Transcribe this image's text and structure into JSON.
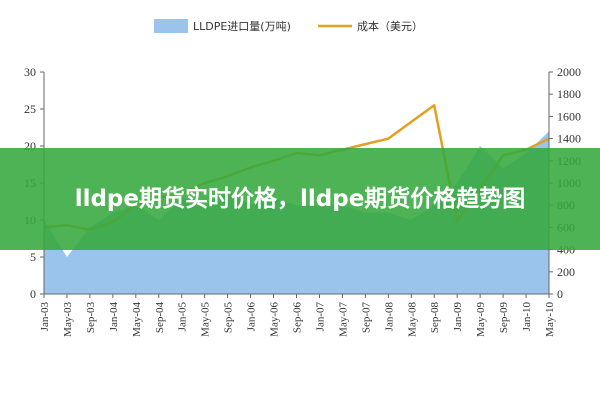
{
  "page_title": "lldpe期货实时价格，lldpe期货价格趋势图",
  "colors": {
    "area": "#9bc4ec",
    "line": "#e3a020",
    "banner": "#34a83c"
  },
  "chart_data": {
    "type": "area",
    "x": [
      "Jan-03",
      "May-03",
      "Sep-03",
      "Jan-04",
      "May-04",
      "Sep-04",
      "Jan-05",
      "May-05",
      "Sep-05",
      "Jan-06",
      "May-06",
      "Sep-06",
      "Jan-07",
      "May-07",
      "Sep-07",
      "Jan-08",
      "May-08",
      "Sep-08",
      "Jan-09",
      "May-09",
      "Sep-09",
      "Jan-10",
      "May-10"
    ],
    "series": [
      {
        "name": "LLDPE进口量(万吨)",
        "axis": "left",
        "chart_type": "area",
        "values": [
          10,
          5,
          9,
          11,
          12,
          10,
          13,
          12,
          14,
          12,
          13,
          12,
          12,
          12,
          11,
          11,
          10,
          12,
          15,
          20,
          17,
          19,
          22
        ]
      },
      {
        "name": "成本（美元）",
        "axis": "right",
        "chart_type": "line",
        "values": [
          600,
          620,
          580,
          650,
          800,
          870,
          900,
          1000,
          1060,
          1140,
          1200,
          1270,
          1250,
          1300,
          1350,
          1400,
          1550,
          1700,
          650,
          950,
          1250,
          1300,
          1400
        ]
      }
    ],
    "y_left": {
      "lim": [
        0,
        30
      ],
      "ticks": [
        0,
        5,
        10,
        15,
        20,
        25,
        30
      ]
    },
    "y_right": {
      "lim": [
        0,
        2000
      ],
      "ticks": [
        0,
        200,
        400,
        600,
        800,
        1000,
        1200,
        1400,
        1600,
        1800,
        2000
      ]
    },
    "legend": {
      "placement": "top-center"
    },
    "grid": false
  }
}
